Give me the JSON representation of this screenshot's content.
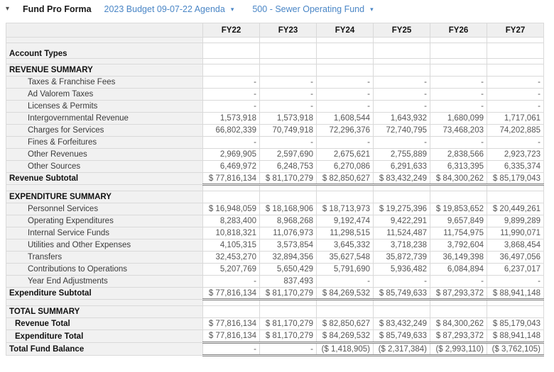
{
  "toolbar": {
    "collapse_icon": "▾",
    "title": "Fund Pro Forma",
    "budget_selector": {
      "label": "2023 Budget 09-07-22 Agenda",
      "caret": "▾"
    },
    "fund_selector": {
      "label": "500 - Sewer Operating Fund",
      "caret": "▾"
    }
  },
  "colors": {
    "link_blue": "#4a86c6",
    "header_bg": "#efefef",
    "label_col_bg": "#f1f1f1",
    "grid_line": "#d9d9d9",
    "total_line": "#7d7d7d",
    "number_text": "#555555"
  },
  "table": {
    "columns": [
      "FY22",
      "FY23",
      "FY24",
      "FY25",
      "FY26",
      "FY27"
    ],
    "rows": [
      {
        "type": "spacer",
        "label": "",
        "values": [
          "",
          "",
          "",
          "",
          "",
          ""
        ]
      },
      {
        "type": "accounttypes",
        "label": "Account Types",
        "values": [
          "",
          "",
          "",
          "",
          "",
          ""
        ]
      },
      {
        "type": "spacer",
        "label": "",
        "values": [
          "",
          "",
          "",
          "",
          "",
          ""
        ]
      },
      {
        "type": "section",
        "label": "REVENUE SUMMARY",
        "values": [
          "",
          "",
          "",
          "",
          "",
          ""
        ]
      },
      {
        "type": "account",
        "label": "Taxes & Franchise Fees",
        "values": [
          "-",
          "-",
          "-",
          "-",
          "-",
          "-"
        ]
      },
      {
        "type": "account",
        "label": "Ad Valorem Taxes",
        "values": [
          "-",
          "-",
          "-",
          "-",
          "-",
          "-"
        ]
      },
      {
        "type": "account",
        "label": "Licenses & Permits",
        "values": [
          "-",
          "-",
          "-",
          "-",
          "-",
          "-"
        ]
      },
      {
        "type": "account",
        "label": "Intergovernmental Revenue",
        "values": [
          "1,573,918",
          "1,573,918",
          "1,608,544",
          "1,643,932",
          "1,680,099",
          "1,717,061"
        ]
      },
      {
        "type": "account",
        "label": "Charges for Services",
        "values": [
          "66,802,339",
          "70,749,918",
          "72,296,376",
          "72,740,795",
          "73,468,203",
          "74,202,885"
        ]
      },
      {
        "type": "account",
        "label": "Fines & Forfeitures",
        "values": [
          "-",
          "-",
          "-",
          "-",
          "-",
          "-"
        ]
      },
      {
        "type": "account",
        "label": "Other Revenues",
        "values": [
          "2,969,905",
          "2,597,690",
          "2,675,621",
          "2,755,889",
          "2,838,566",
          "2,923,723"
        ]
      },
      {
        "type": "account",
        "label": "Other Sources",
        "values": [
          "6,469,972",
          "6,248,753",
          "6,270,086",
          "6,291,633",
          "6,313,395",
          "6,335,374"
        ]
      },
      {
        "type": "subtotal",
        "label": "Revenue Subtotal",
        "values": [
          "$ 77,816,134",
          "$ 81,170,279",
          "$ 82,850,627",
          "$ 83,432,249",
          "$ 84,300,262",
          "$ 85,179,043"
        ]
      },
      {
        "type": "spacer",
        "label": "",
        "values": [
          "",
          "",
          "",
          "",
          "",
          ""
        ]
      },
      {
        "type": "section",
        "label": "EXPENDITURE SUMMARY",
        "values": [
          "",
          "",
          "",
          "",
          "",
          ""
        ]
      },
      {
        "type": "account",
        "label": "Personnel Services",
        "values": [
          "$ 16,948,059",
          "$ 18,168,906",
          "$ 18,713,973",
          "$ 19,275,396",
          "$ 19,853,652",
          "$ 20,449,261"
        ]
      },
      {
        "type": "account",
        "label": "Operating Expenditures",
        "values": [
          "8,283,400",
          "8,968,268",
          "9,192,474",
          "9,422,291",
          "9,657,849",
          "9,899,289"
        ]
      },
      {
        "type": "account",
        "label": "Internal Service Funds",
        "values": [
          "10,818,321",
          "11,076,973",
          "11,298,515",
          "11,524,487",
          "11,754,975",
          "11,990,071"
        ]
      },
      {
        "type": "account",
        "label": "Utilities and Other Expenses",
        "values": [
          "4,105,315",
          "3,573,854",
          "3,645,332",
          "3,718,238",
          "3,792,604",
          "3,868,454"
        ]
      },
      {
        "type": "account",
        "label": "Transfers",
        "values": [
          "32,453,270",
          "32,894,356",
          "35,627,548",
          "35,872,739",
          "36,149,398",
          "36,497,056"
        ]
      },
      {
        "type": "account",
        "label": "Contributions to Operations",
        "values": [
          "5,207,769",
          "5,650,429",
          "5,791,690",
          "5,936,482",
          "6,084,894",
          "6,237,017"
        ]
      },
      {
        "type": "account",
        "label": "Year End Adjustments",
        "values": [
          "-",
          "837,493",
          "-",
          "-",
          "-",
          "-"
        ]
      },
      {
        "type": "subtotal",
        "label": "Expenditure Subtotal",
        "values": [
          "$ 77,816,134",
          "$ 81,170,279",
          "$ 84,269,532",
          "$ 85,749,633",
          "$ 87,293,372",
          "$ 88,941,148"
        ]
      },
      {
        "type": "spacer",
        "label": "",
        "values": [
          "",
          "",
          "",
          "",
          "",
          ""
        ]
      },
      {
        "type": "section",
        "label": "TOTAL SUMMARY",
        "values": [
          "",
          "",
          "",
          "",
          "",
          ""
        ]
      },
      {
        "type": "totalrow",
        "label": "Revenue Total",
        "values": [
          "$ 77,816,134",
          "$ 81,170,279",
          "$ 82,850,627",
          "$ 83,432,249",
          "$ 84,300,262",
          "$ 85,179,043"
        ]
      },
      {
        "type": "totalrow",
        "label": "Expenditure Total",
        "values": [
          "$ 77,816,134",
          "$ 81,170,279",
          "$ 84,269,532",
          "$ 85,749,633",
          "$ 87,293,372",
          "$ 88,941,148"
        ]
      },
      {
        "type": "grandtotal",
        "label": "Total Fund Balance",
        "values": [
          "-",
          "-",
          "($ 1,418,905)",
          "($ 2,317,384)",
          "($ 2,993,110)",
          "($ 3,762,105)"
        ]
      }
    ]
  }
}
